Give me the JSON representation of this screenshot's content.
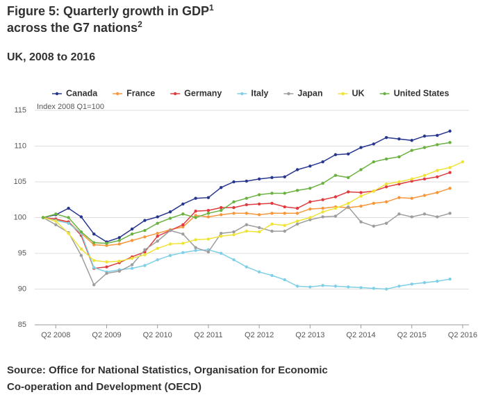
{
  "chart_data": {
    "type": "line",
    "title": [
      "Figure 5: Quarterly growth in GDP",
      "1",
      " across the G7 nations",
      "2"
    ],
    "subtitle": "UK, 2008 to 2016",
    "y_label": "Index 2008 Q1=100",
    "source": "Source: Office for National Statistics, Organisation for Economic Co-operation and Development (OECD)",
    "categories": [
      null,
      "Q2 2008",
      null,
      null,
      null,
      "Q2 2009",
      null,
      null,
      null,
      "Q2 2010",
      null,
      null,
      null,
      "Q2 2011",
      null,
      null,
      null,
      "Q2 2012",
      null,
      null,
      null,
      "Q2 2013",
      null,
      null,
      null,
      "Q2 2014",
      null,
      null,
      null,
      "Q2 2015",
      null,
      null,
      null,
      "Q2 2016"
    ],
    "ylim": [
      85,
      115
    ],
    "yticks": [
      85,
      90,
      95,
      100,
      105,
      110,
      115
    ],
    "grid": true,
    "legend": "top",
    "series": [
      {
        "name": "Canada",
        "color": "#27378f",
        "values": [
          100,
          100.4,
          101.3,
          100.1,
          97.7,
          96.6,
          97.2,
          98.4,
          99.6,
          100.1,
          100.8,
          101.9,
          102.7,
          102.8,
          104.2,
          105.0,
          105.1,
          105.4,
          105.6,
          105.7,
          106.7,
          107.2,
          107.8,
          108.8,
          108.9,
          109.8,
          110.3,
          111.2,
          111.0,
          110.8,
          111.4,
          111.5,
          112.1,
          null
        ]
      },
      {
        "name": "France",
        "color": "#f7963a",
        "values": [
          100,
          99.7,
          99.4,
          97.8,
          96.2,
          96.1,
          96.3,
          96.8,
          97.3,
          97.8,
          98.3,
          98.7,
          100.3,
          100.1,
          100.4,
          100.6,
          100.6,
          100.4,
          100.6,
          100.6,
          100.6,
          101.2,
          101.3,
          101.5,
          101.4,
          101.6,
          102.0,
          102.2,
          102.8,
          102.7,
          103.1,
          103.5,
          104.1,
          null
        ]
      },
      {
        "name": "Germany",
        "color": "#e03a3e",
        "values": [
          100,
          99.8,
          99.4,
          97.5,
          92.9,
          93.1,
          93.7,
          94.5,
          95.2,
          97.4,
          98.2,
          99.0,
          100.9,
          101.0,
          101.4,
          101.4,
          101.8,
          101.9,
          102.0,
          101.5,
          101.3,
          102.2,
          102.5,
          102.9,
          103.6,
          103.5,
          103.7,
          104.3,
          104.7,
          105.1,
          105.4,
          105.7,
          106.3,
          null
        ]
      },
      {
        "name": "Italy",
        "color": "#7fcfe6",
        "values": [
          100,
          99.6,
          99.2,
          97.8,
          93.0,
          92.4,
          92.7,
          92.9,
          93.3,
          94.1,
          94.7,
          95.1,
          95.4,
          95.5,
          95.0,
          94.1,
          93.1,
          92.4,
          91.9,
          91.3,
          90.4,
          90.3,
          90.5,
          90.4,
          90.3,
          90.2,
          90.1,
          90.0,
          90.4,
          90.7,
          90.9,
          91.1,
          91.4,
          null
        ]
      },
      {
        "name": "Japan",
        "color": "#9d9d9d",
        "values": [
          100,
          99.0,
          97.9,
          94.7,
          90.6,
          92.2,
          92.5,
          93.4,
          95.5,
          96.7,
          98.2,
          97.7,
          95.8,
          95.2,
          97.8,
          98.0,
          99.0,
          98.6,
          98.1,
          98.1,
          99.1,
          99.7,
          100.1,
          100.2,
          101.5,
          99.4,
          98.8,
          99.2,
          100.5,
          100.1,
          100.5,
          100.1,
          100.6,
          null
        ]
      },
      {
        "name": "UK",
        "color": "#efe336",
        "values": [
          100,
          99.5,
          97.8,
          95.6,
          94.0,
          93.8,
          93.9,
          94.3,
          94.8,
          95.7,
          96.3,
          96.4,
          96.9,
          97.0,
          97.4,
          97.6,
          98.1,
          98.0,
          99.1,
          98.9,
          99.5,
          100.0,
          100.8,
          101.3,
          102.0,
          103.0,
          103.7,
          104.7,
          105.0,
          105.4,
          105.9,
          106.6,
          107.0,
          107.8
        ]
      },
      {
        "name": "United States",
        "color": "#6ab23f",
        "values": [
          100,
          100.5,
          100.0,
          98.0,
          96.5,
          96.4,
          96.8,
          97.7,
          98.2,
          99.2,
          99.9,
          100.5,
          100.0,
          100.6,
          101.0,
          102.2,
          102.7,
          103.2,
          103.4,
          103.4,
          103.8,
          104.1,
          104.8,
          105.9,
          105.6,
          106.7,
          107.8,
          108.2,
          108.5,
          109.4,
          109.8,
          110.2,
          110.5,
          null
        ]
      }
    ]
  }
}
